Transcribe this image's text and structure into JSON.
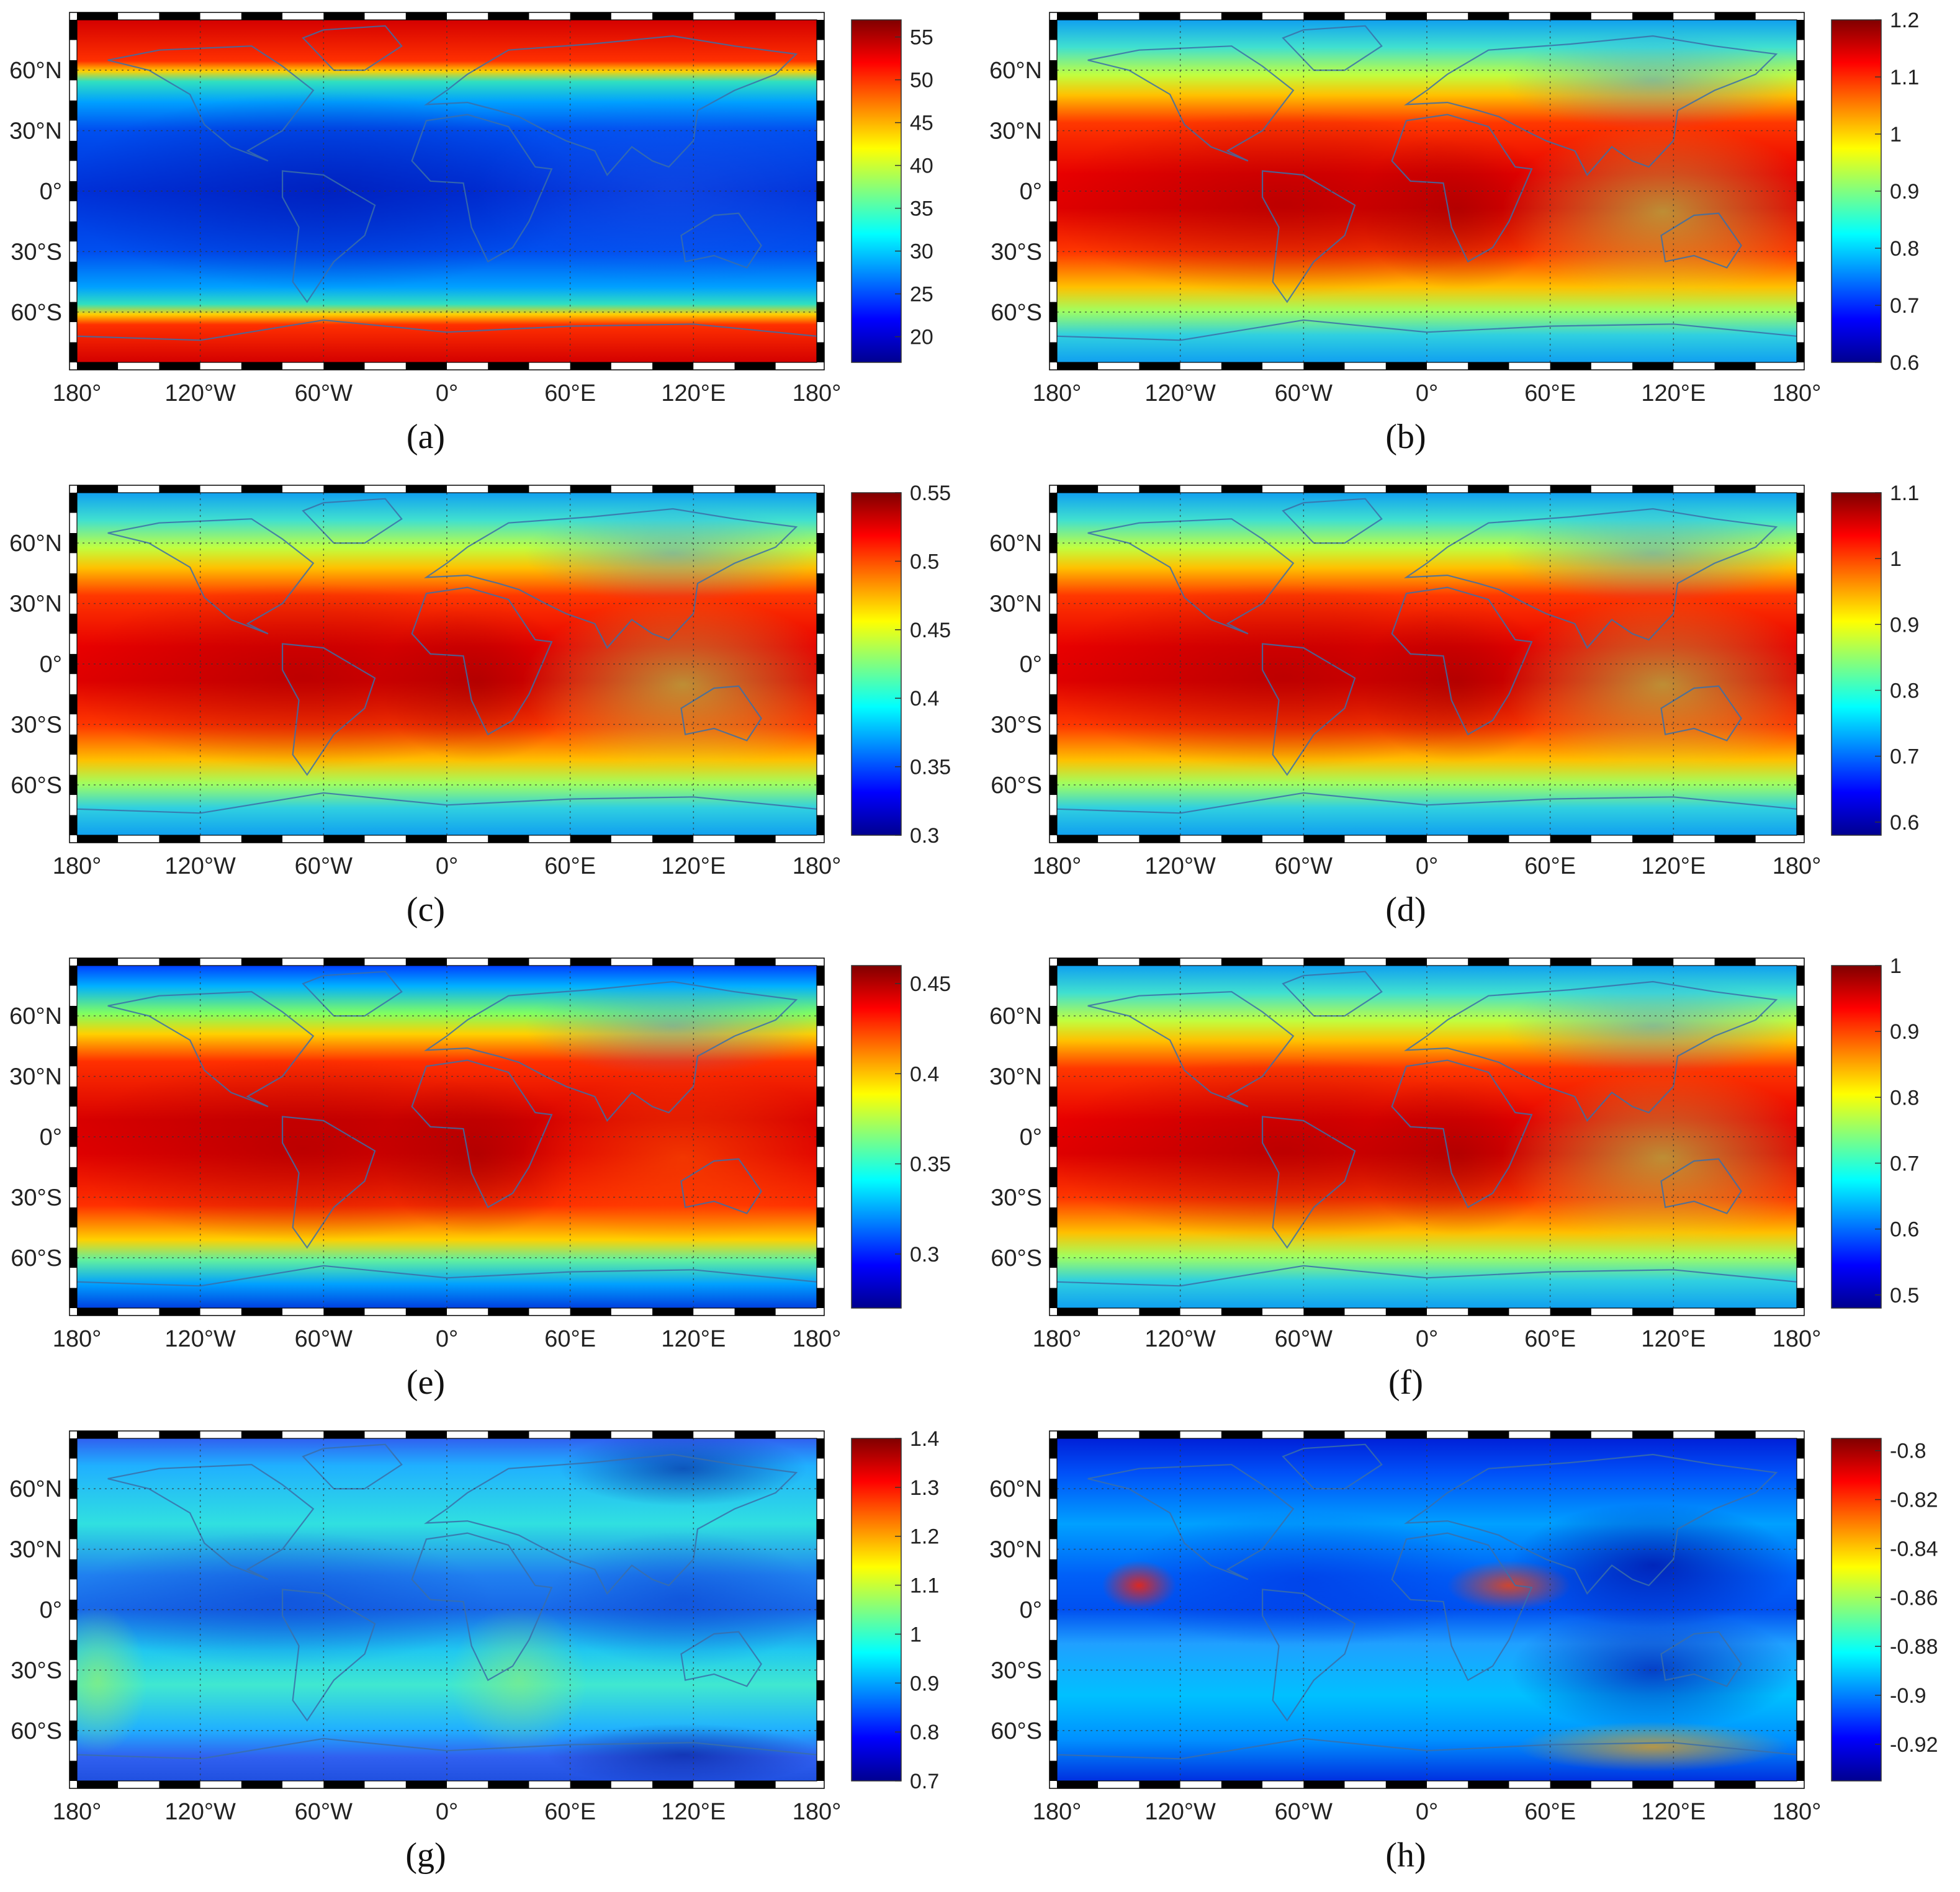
{
  "figure": {
    "lat_ticks": [
      "60°N",
      "30°N",
      "0°",
      "30°S",
      "60°S"
    ],
    "lon_ticks": [
      "180°",
      "120°W",
      "60°W",
      "0°",
      "60°E",
      "120°E",
      "180°"
    ],
    "colormap": [
      "#00008f",
      "#0000ff",
      "#0080ff",
      "#00ffff",
      "#80ff80",
      "#ffff00",
      "#ff8000",
      "#ff0000",
      "#800000"
    ]
  },
  "panels": [
    {
      "id": "a",
      "label": "(a)",
      "pattern": "polar",
      "colorbar": {
        "min": 17,
        "max": 57,
        "ticks": [
          "55",
          "50",
          "45",
          "40",
          "35",
          "30",
          "25",
          "20"
        ],
        "tick_values": [
          55,
          50,
          45,
          40,
          35,
          30,
          25,
          20
        ]
      }
    },
    {
      "id": "b",
      "label": "(b)",
      "pattern": "equatorial",
      "colorbar": {
        "min": 0.6,
        "max": 1.2,
        "ticks": [
          "1.2",
          "1.1",
          "1",
          "0.9",
          "0.8",
          "0.7",
          "0.6"
        ],
        "tick_values": [
          1.2,
          1.1,
          1.0,
          0.9,
          0.8,
          0.7,
          0.6
        ]
      }
    },
    {
      "id": "c",
      "label": "(c)",
      "pattern": "equatorial",
      "colorbar": {
        "min": 0.3,
        "max": 0.55,
        "ticks": [
          "0.55",
          "0.5",
          "0.45",
          "0.4",
          "0.35",
          "0.3"
        ],
        "tick_values": [
          0.55,
          0.5,
          0.45,
          0.4,
          0.35,
          0.3
        ]
      }
    },
    {
      "id": "d",
      "label": "(d)",
      "pattern": "equatorial",
      "colorbar": {
        "min": 0.58,
        "max": 1.1,
        "ticks": [
          "1.1",
          "1",
          "0.9",
          "0.8",
          "0.7",
          "0.6"
        ],
        "tick_values": [
          1.1,
          1.0,
          0.9,
          0.8,
          0.7,
          0.6
        ]
      }
    },
    {
      "id": "e",
      "label": "(e)",
      "pattern": "equatorial_strong",
      "colorbar": {
        "min": 0.27,
        "max": 0.46,
        "ticks": [
          "0.45",
          "0.4",
          "0.35",
          "0.3"
        ],
        "tick_values": [
          0.45,
          0.4,
          0.35,
          0.3
        ]
      }
    },
    {
      "id": "f",
      "label": "(f)",
      "pattern": "equatorial",
      "colorbar": {
        "min": 0.48,
        "max": 1.0,
        "ticks": [
          "1",
          "0.9",
          "0.8",
          "0.7",
          "0.6",
          "0.5"
        ],
        "tick_values": [
          1.0,
          0.9,
          0.8,
          0.7,
          0.6,
          0.5
        ]
      }
    },
    {
      "id": "g",
      "label": "(g)",
      "pattern": "cyan",
      "colorbar": {
        "min": 0.7,
        "max": 1.4,
        "ticks": [
          "1.4",
          "1.3",
          "1.2",
          "1.1",
          "1",
          "0.9",
          "0.8",
          "0.7"
        ],
        "tick_values": [
          1.4,
          1.3,
          1.2,
          1.1,
          1.0,
          0.9,
          0.8,
          0.7
        ]
      }
    },
    {
      "id": "h",
      "label": "(h)",
      "pattern": "blue_lobes",
      "colorbar": {
        "min": -0.935,
        "max": -0.795,
        "ticks": [
          "-0.8",
          "-0.82",
          "-0.84",
          "-0.86",
          "-0.88",
          "-0.9",
          "-0.92"
        ],
        "tick_values": [
          -0.8,
          -0.82,
          -0.84,
          -0.86,
          -0.88,
          -0.9,
          -0.92
        ]
      }
    }
  ]
}
